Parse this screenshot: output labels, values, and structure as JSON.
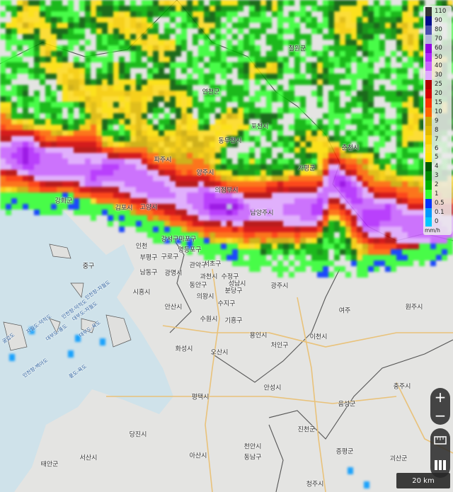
{
  "legend": {
    "unit": "mm/h",
    "items": [
      {
        "label": "110",
        "color": "#333333"
      },
      {
        "label": "90",
        "color": "#000a8c"
      },
      {
        "label": "80",
        "color": "#4c4eb1"
      },
      {
        "label": "70",
        "color": "#b3b4de"
      },
      {
        "label": "60",
        "color": "#9300e4"
      },
      {
        "label": "50",
        "color": "#b329ff"
      },
      {
        "label": "40",
        "color": "#c963ff"
      },
      {
        "label": "30",
        "color": "#e0a9ff"
      },
      {
        "label": "25",
        "color": "#b40000"
      },
      {
        "label": "20",
        "color": "#d20000"
      },
      {
        "label": "15",
        "color": "#ff3200"
      },
      {
        "label": "10",
        "color": "#ff6600"
      },
      {
        "label": "9",
        "color": "#ccaa00"
      },
      {
        "label": "8",
        "color": "#e0b900"
      },
      {
        "label": "7",
        "color": "#f9cd00"
      },
      {
        "label": "6",
        "color": "#ffdc1f"
      },
      {
        "label": "5",
        "color": "#ffe100"
      },
      {
        "label": "4",
        "color": "#005a00"
      },
      {
        "label": "3",
        "color": "#008c00"
      },
      {
        "label": "2",
        "color": "#00b300"
      },
      {
        "label": "1",
        "color": "#33ff33"
      },
      {
        "label": "0.5",
        "color": "#0033ff"
      },
      {
        "label": "0.1",
        "color": "#0099ff"
      },
      {
        "label": "0",
        "color": "#00c8ff"
      }
    ]
  },
  "controls": {
    "zoom_in": "+",
    "zoom_out": "−",
    "ruler_icon": "ruler-icon",
    "layers_icon": "layers-icon"
  },
  "scale_bar": "20 km",
  "place_labels": [
    "철원군",
    "연천군",
    "포천시",
    "동두천시",
    "파주시",
    "양주시",
    "의정부시",
    "가평군",
    "춘천시",
    "남양주시",
    "김포시",
    "고양시",
    "강화군",
    "인천",
    "부평구",
    "남동구",
    "강서구",
    "마포구",
    "영등포구",
    "구로구",
    "관악구",
    "서초구",
    "광명시",
    "과천시",
    "수정구",
    "동안구",
    "성남시",
    "분당구",
    "시흥시",
    "의왕시",
    "안산시",
    "수지구",
    "수원시",
    "기흥구",
    "광주시",
    "중구",
    "여주",
    "원주시",
    "용인시",
    "처인구",
    "이천시",
    "화성시",
    "오산시",
    "안성시",
    "평택시",
    "음성군",
    "충주시",
    "진천군",
    "천안시",
    "동남구",
    "아산시",
    "증평군",
    "괴산군",
    "청주시",
    "당진시",
    "서산시",
    "태안군"
  ],
  "sea_labels": [
    "인천항-덕적도",
    "자월도-덕적도",
    "대부도-자월도",
    "인천항-자월도",
    "대부도-풍도",
    "대부도-육도",
    "인천항-백아도",
    "풍도-육도",
    "굴업도"
  ]
}
